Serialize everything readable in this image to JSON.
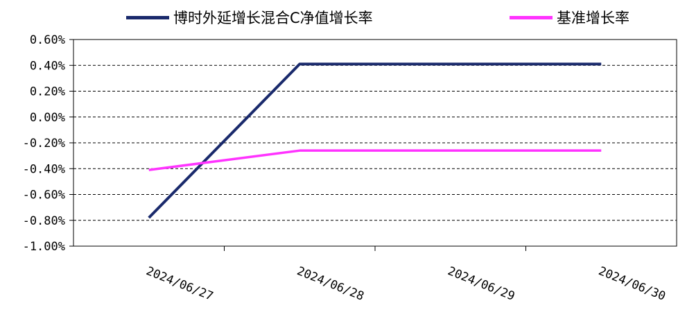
{
  "chart_data": {
    "type": "line",
    "categories": [
      "2024/06/27",
      "2024/06/28",
      "2024/06/29",
      "2024/06/30"
    ],
    "series": [
      {
        "name": "博时外延增长混合C净值增长率",
        "color": "#1a2a6c",
        "values": [
          -0.78,
          0.41,
          0.41,
          0.41
        ]
      },
      {
        "name": "基准增长率",
        "color": "#ff33ff",
        "values": [
          -0.41,
          -0.26,
          -0.26,
          -0.26
        ]
      }
    ],
    "yticks": [
      "0.60%",
      "0.40%",
      "0.20%",
      "0.00%",
      "-0.20%",
      "-0.40%",
      "-0.60%",
      "-0.80%",
      "-1.00%"
    ],
    "ylim": [
      -1.0,
      0.6
    ],
    "ytick_step": 0.2,
    "grid": true,
    "gridlines": "dashed",
    "legend_position": "top",
    "title": "",
    "xlabel": "",
    "ylabel": ""
  }
}
